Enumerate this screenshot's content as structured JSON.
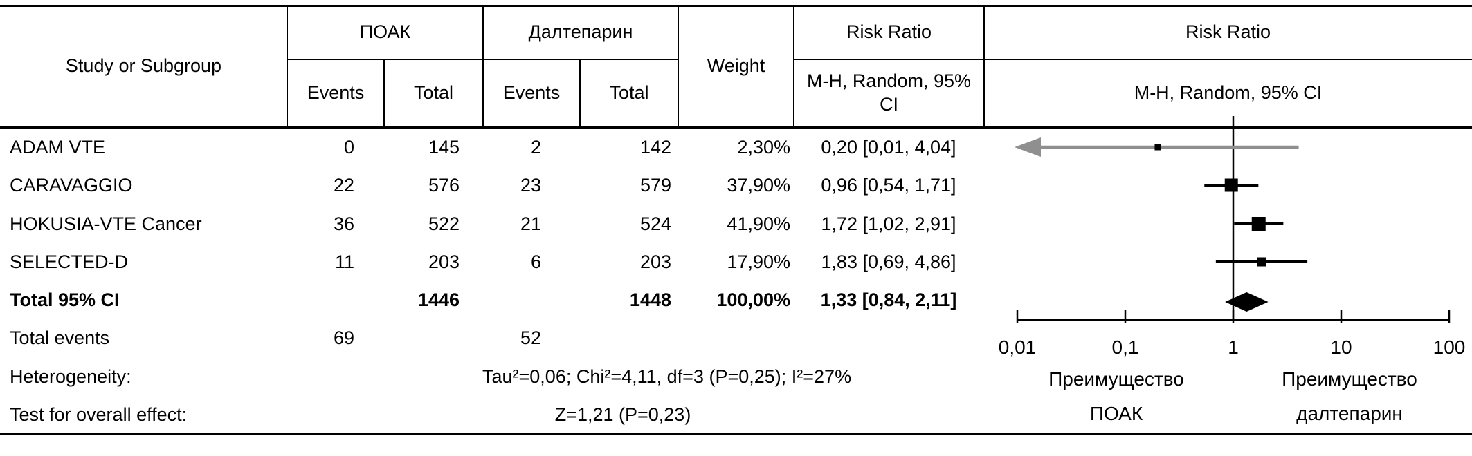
{
  "header": {
    "study": "Study or Subgroup",
    "group1": "ПОАК",
    "group2": "Далтепарин",
    "events1": "Events",
    "total1": "Total",
    "events2": "Events",
    "total2": "Total",
    "weight": "Weight",
    "rr_col_title": "Risk Ratio",
    "rr_col_sub": "M-H, Random, 95% CI",
    "plot_col_title": "Risk Ratio",
    "plot_col_sub": "M-H, Random, 95% CI"
  },
  "rows": [
    {
      "study": "ADAM VTE",
      "e1": "0",
      "t1": "145",
      "e2": "2",
      "t2": "142",
      "weight": "2,30%",
      "rr_text": "0,20 [0,01, 4,04]"
    },
    {
      "study": "CARAVAGGIO",
      "e1": "22",
      "t1": "576",
      "e2": "23",
      "t2": "579",
      "weight": "37,90%",
      "rr_text": "0,96 [0,54, 1,71]"
    },
    {
      "study": "HOKUSIA-VTE Cancer",
      "e1": "36",
      "t1": "522",
      "e2": "21",
      "t2": "524",
      "weight": "41,90%",
      "rr_text": "1,72 [1,02, 2,91]"
    },
    {
      "study": "SELECTED-D",
      "e1": "11",
      "t1": "203",
      "e2": "6",
      "t2": "203",
      "weight": "17,90%",
      "rr_text": "1,83 [0,69, 4,86]"
    }
  ],
  "total_row": {
    "study": "Total 95% CI",
    "t1": "1446",
    "t2": "1448",
    "weight": "100,00%",
    "rr_text": "1,33 [0,84, 2,11]"
  },
  "total_events_row": {
    "label": "Total events",
    "e1": "69",
    "e2": "52"
  },
  "heterogeneity": {
    "label": "Heterogeneity:",
    "value": "Tau²=0,06; Chi²=4,11, df=3 (P=0,25); I²=27%"
  },
  "overall_effect": {
    "label": "Test for overall effect:",
    "value": "Z=1,21 (P=0,23)"
  },
  "chart_data": {
    "type": "forest",
    "effect_measure": "Risk Ratio, M-H, Random, 95% CI",
    "x_scale": "log",
    "x_ticks": {
      "labels": [
        "0,01",
        "0,1",
        "1",
        "10",
        "100"
      ],
      "values": [
        0.01,
        0.1,
        1,
        10,
        100
      ]
    },
    "studies": [
      {
        "name": "ADAM VTE",
        "rr": 0.2,
        "ci_low": 0.01,
        "ci_high": 4.04,
        "weight_pct": 2.3,
        "ci_off_scale_left": true
      },
      {
        "name": "CARAVAGGIO",
        "rr": 0.96,
        "ci_low": 0.54,
        "ci_high": 1.71,
        "weight_pct": 37.9,
        "ci_off_scale_left": false
      },
      {
        "name": "HOKUSIA-VTE Cancer",
        "rr": 1.72,
        "ci_low": 1.02,
        "ci_high": 2.91,
        "weight_pct": 41.9,
        "ci_off_scale_left": false
      },
      {
        "name": "SELECTED-D",
        "rr": 1.83,
        "ci_low": 0.69,
        "ci_high": 4.86,
        "weight_pct": 17.9,
        "ci_off_scale_left": false
      }
    ],
    "overall": {
      "rr": 1.33,
      "ci_low": 0.84,
      "ci_high": 2.11
    },
    "footer_left_lines": [
      "Преимущество",
      "ПОАК"
    ],
    "footer_right_lines": [
      "Преимущество",
      "далтепарин"
    ],
    "colors": {
      "marker": "#000000",
      "line": "#000000",
      "offscale_arrow": "#8f8f8f"
    }
  }
}
